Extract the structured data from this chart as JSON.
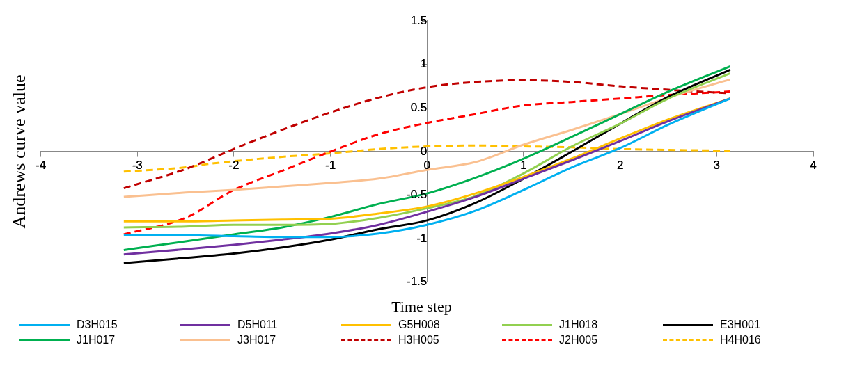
{
  "chart_data": {
    "type": "line",
    "xlabel": "Time step",
    "ylabel": "Andrews curve value",
    "xlim": [
      -4,
      4
    ],
    "xticks": [
      -4,
      -3,
      -2,
      -1,
      0,
      1,
      2,
      3,
      4
    ],
    "ylim": [
      -1.5,
      1.5
    ],
    "yticks": [
      -1.5,
      -1,
      -0.5,
      0,
      0.5,
      1,
      1.5
    ],
    "grid": false,
    "legend": "bottom",
    "marker": "none",
    "x": [
      -3.14,
      -2.5,
      -2,
      -1.5,
      -1,
      -0.5,
      0,
      0.5,
      1,
      1.5,
      2,
      2.5,
      3.14
    ],
    "series": [
      {
        "name": "D3H015",
        "color": "#00b0f0",
        "line_style": "solid",
        "values": [
          -0.96,
          -0.96,
          -0.97,
          -0.98,
          -0.98,
          -0.94,
          -0.84,
          -0.68,
          -0.44,
          -0.18,
          0.04,
          0.31,
          0.61
        ]
      },
      {
        "name": "D5H011",
        "color": "#7030a0",
        "line_style": "solid",
        "values": [
          -1.18,
          -1.12,
          -1.07,
          -1.01,
          -0.94,
          -0.84,
          -0.69,
          -0.52,
          -0.31,
          -0.1,
          0.12,
          0.35,
          0.61
        ]
      },
      {
        "name": "G5H008",
        "color": "#ffc000",
        "line_style": "solid",
        "values": [
          -0.8,
          -0.8,
          -0.79,
          -0.78,
          -0.77,
          -0.71,
          -0.63,
          -0.48,
          -0.29,
          -0.08,
          0.15,
          0.37,
          0.61
        ]
      },
      {
        "name": "J1H018",
        "color": "#92d050",
        "line_style": "solid",
        "values": [
          -0.87,
          -0.86,
          -0.84,
          -0.84,
          -0.83,
          -0.76,
          -0.65,
          -0.51,
          -0.25,
          0.06,
          0.32,
          0.61,
          0.9
        ]
      },
      {
        "name": "E3H001",
        "color": "#000000",
        "line_style": "solid",
        "values": [
          -1.28,
          -1.22,
          -1.17,
          -1.1,
          -1.01,
          -0.89,
          -0.79,
          -0.59,
          -0.31,
          0,
          0.32,
          0.63,
          0.94
        ]
      },
      {
        "name": "J1H017",
        "color": "#00b050",
        "line_style": "solid",
        "values": [
          -1.13,
          -1.03,
          -0.95,
          -0.87,
          -0.75,
          -0.6,
          -0.48,
          -0.3,
          -0.08,
          0.17,
          0.43,
          0.69,
          0.98
        ]
      },
      {
        "name": "J3H017",
        "color": "#fac090",
        "line_style": "solid",
        "values": [
          -0.52,
          -0.47,
          -0.44,
          -0.4,
          -0.36,
          -0.31,
          -0.21,
          -0.12,
          0.08,
          0.25,
          0.43,
          0.62,
          0.83
        ]
      },
      {
        "name": "H3H005",
        "color": "#c00000",
        "line_style": "dashed",
        "values": [
          -0.42,
          -0.2,
          0.03,
          0.25,
          0.45,
          0.62,
          0.74,
          0.8,
          0.82,
          0.8,
          0.75,
          0.71,
          0.67
        ]
      },
      {
        "name": "J2H005",
        "color": "#ff0000",
        "line_style": "dashed",
        "values": [
          -0.95,
          -0.76,
          -0.44,
          -0.22,
          0,
          0.2,
          0.33,
          0.43,
          0.53,
          0.57,
          0.61,
          0.65,
          0.69
        ]
      },
      {
        "name": "H4H016",
        "color": "#ffc000",
        "line_style": "dashed",
        "x": [
          -3.14,
          -2.5,
          -2.25,
          -1.5,
          -1,
          -0.5,
          0,
          0.5,
          1,
          1.5,
          2,
          2.5,
          3.14
        ],
        "values": [
          -0.23,
          -0.18,
          -0.14,
          -0.06,
          -0.02,
          0.03,
          0.06,
          0.07,
          0.06,
          0.05,
          0.03,
          0.02,
          0.01
        ]
      }
    ]
  }
}
